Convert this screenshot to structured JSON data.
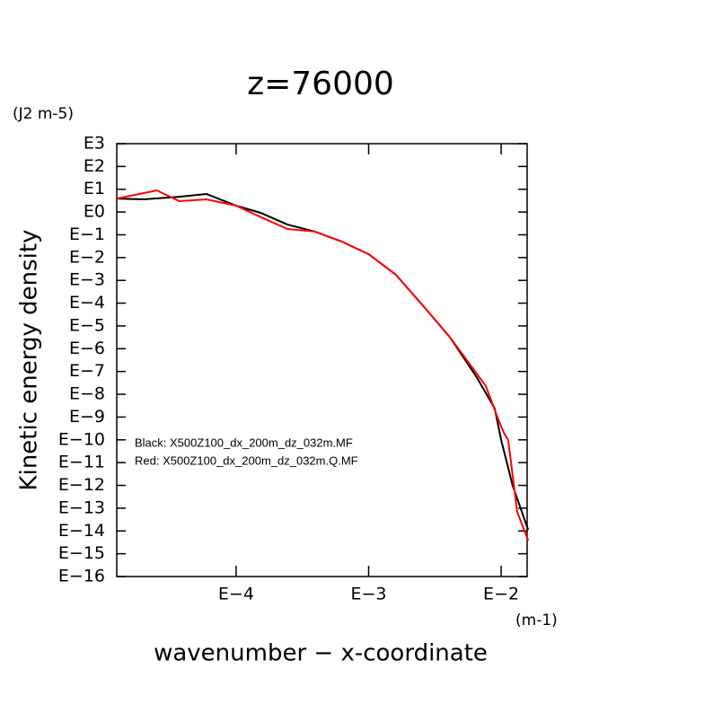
{
  "chart_data": {
    "type": "line",
    "title": "z=76000",
    "y_unit": "(J2 m-5)",
    "x_unit": "(m-1)",
    "ylabel": "Kinetic energy density",
    "xlabel": "wavenumber − x-coordinate",
    "xscale": "log",
    "yscale": "log",
    "xlim": [
      1.2566e-05,
      0.015708
    ],
    "ylim": [
      1e-16,
      1000
    ],
    "xticks": [
      {
        "value": 0.0001,
        "label": "E−4"
      },
      {
        "value": 0.001,
        "label": "E−3"
      },
      {
        "value": 0.01,
        "label": "E−2"
      }
    ],
    "yticks": [
      {
        "value": 1000,
        "label": "E3"
      },
      {
        "value": 100,
        "label": "E2"
      },
      {
        "value": 10,
        "label": "E1"
      },
      {
        "value": 1,
        "label": "E0"
      },
      {
        "value": 0.1,
        "label": "E−1"
      },
      {
        "value": 0.01,
        "label": "E−2"
      },
      {
        "value": 0.001,
        "label": "E−3"
      },
      {
        "value": 0.0001,
        "label": "E−4"
      },
      {
        "value": 1e-05,
        "label": "E−5"
      },
      {
        "value": 1e-06,
        "label": "E−6"
      },
      {
        "value": 1e-07,
        "label": "E−7"
      },
      {
        "value": 1e-08,
        "label": "E−8"
      },
      {
        "value": 1e-09,
        "label": "E−9"
      },
      {
        "value": 1e-10,
        "label": "E−10"
      },
      {
        "value": 1e-11,
        "label": "E−11"
      },
      {
        "value": 1e-12,
        "label": "E−12"
      },
      {
        "value": 1e-13,
        "label": "E−13"
      },
      {
        "value": 1e-14,
        "label": "E−14"
      },
      {
        "value": 1e-15,
        "label": "E−15"
      },
      {
        "value": 1e-16,
        "label": "E−16"
      }
    ],
    "series": [
      {
        "name": "Black: X500Z100_dx_200m_dz_032m.MF",
        "color": "#000000",
        "x": [
          1.26e-05,
          1.99e-05,
          3.73e-05,
          5.97e-05,
          0.0001,
          0.000153,
          0.000244,
          0.000391,
          0.000625,
          0.001,
          0.0016,
          0.00256,
          0.00409,
          0.00655,
          0.00895,
          0.01,
          0.0122,
          0.016
        ],
        "values": [
          3.9,
          3.6,
          4.7,
          6.2,
          1.9,
          0.92,
          0.28,
          0.14,
          0.051,
          0.014,
          0.0018,
          8e-05,
          3.3e-06,
          5.6e-08,
          2.4e-09,
          9.8e-11,
          1e-12,
          1.1e-14
        ]
      },
      {
        "name": "Red: X500Z100_dx_200m_dz_032m.Q.MF",
        "color": "#ff0000",
        "x": [
          1.26e-05,
          2.52e-05,
          3.73e-05,
          5.97e-05,
          0.0001,
          0.000153,
          0.000244,
          0.000391,
          0.000625,
          0.001,
          0.0016,
          0.00256,
          0.00409,
          0.00766,
          0.00968,
          0.0105,
          0.0113,
          0.0132,
          0.016
        ],
        "values": [
          3.9,
          8.9,
          3.0,
          3.6,
          1.9,
          0.6,
          0.18,
          0.14,
          0.051,
          0.014,
          0.0018,
          8e-05,
          3.3e-06,
          2.3e-08,
          6e-10,
          2e-10,
          1e-10,
          7e-14,
          3.8e-15
        ]
      }
    ]
  }
}
